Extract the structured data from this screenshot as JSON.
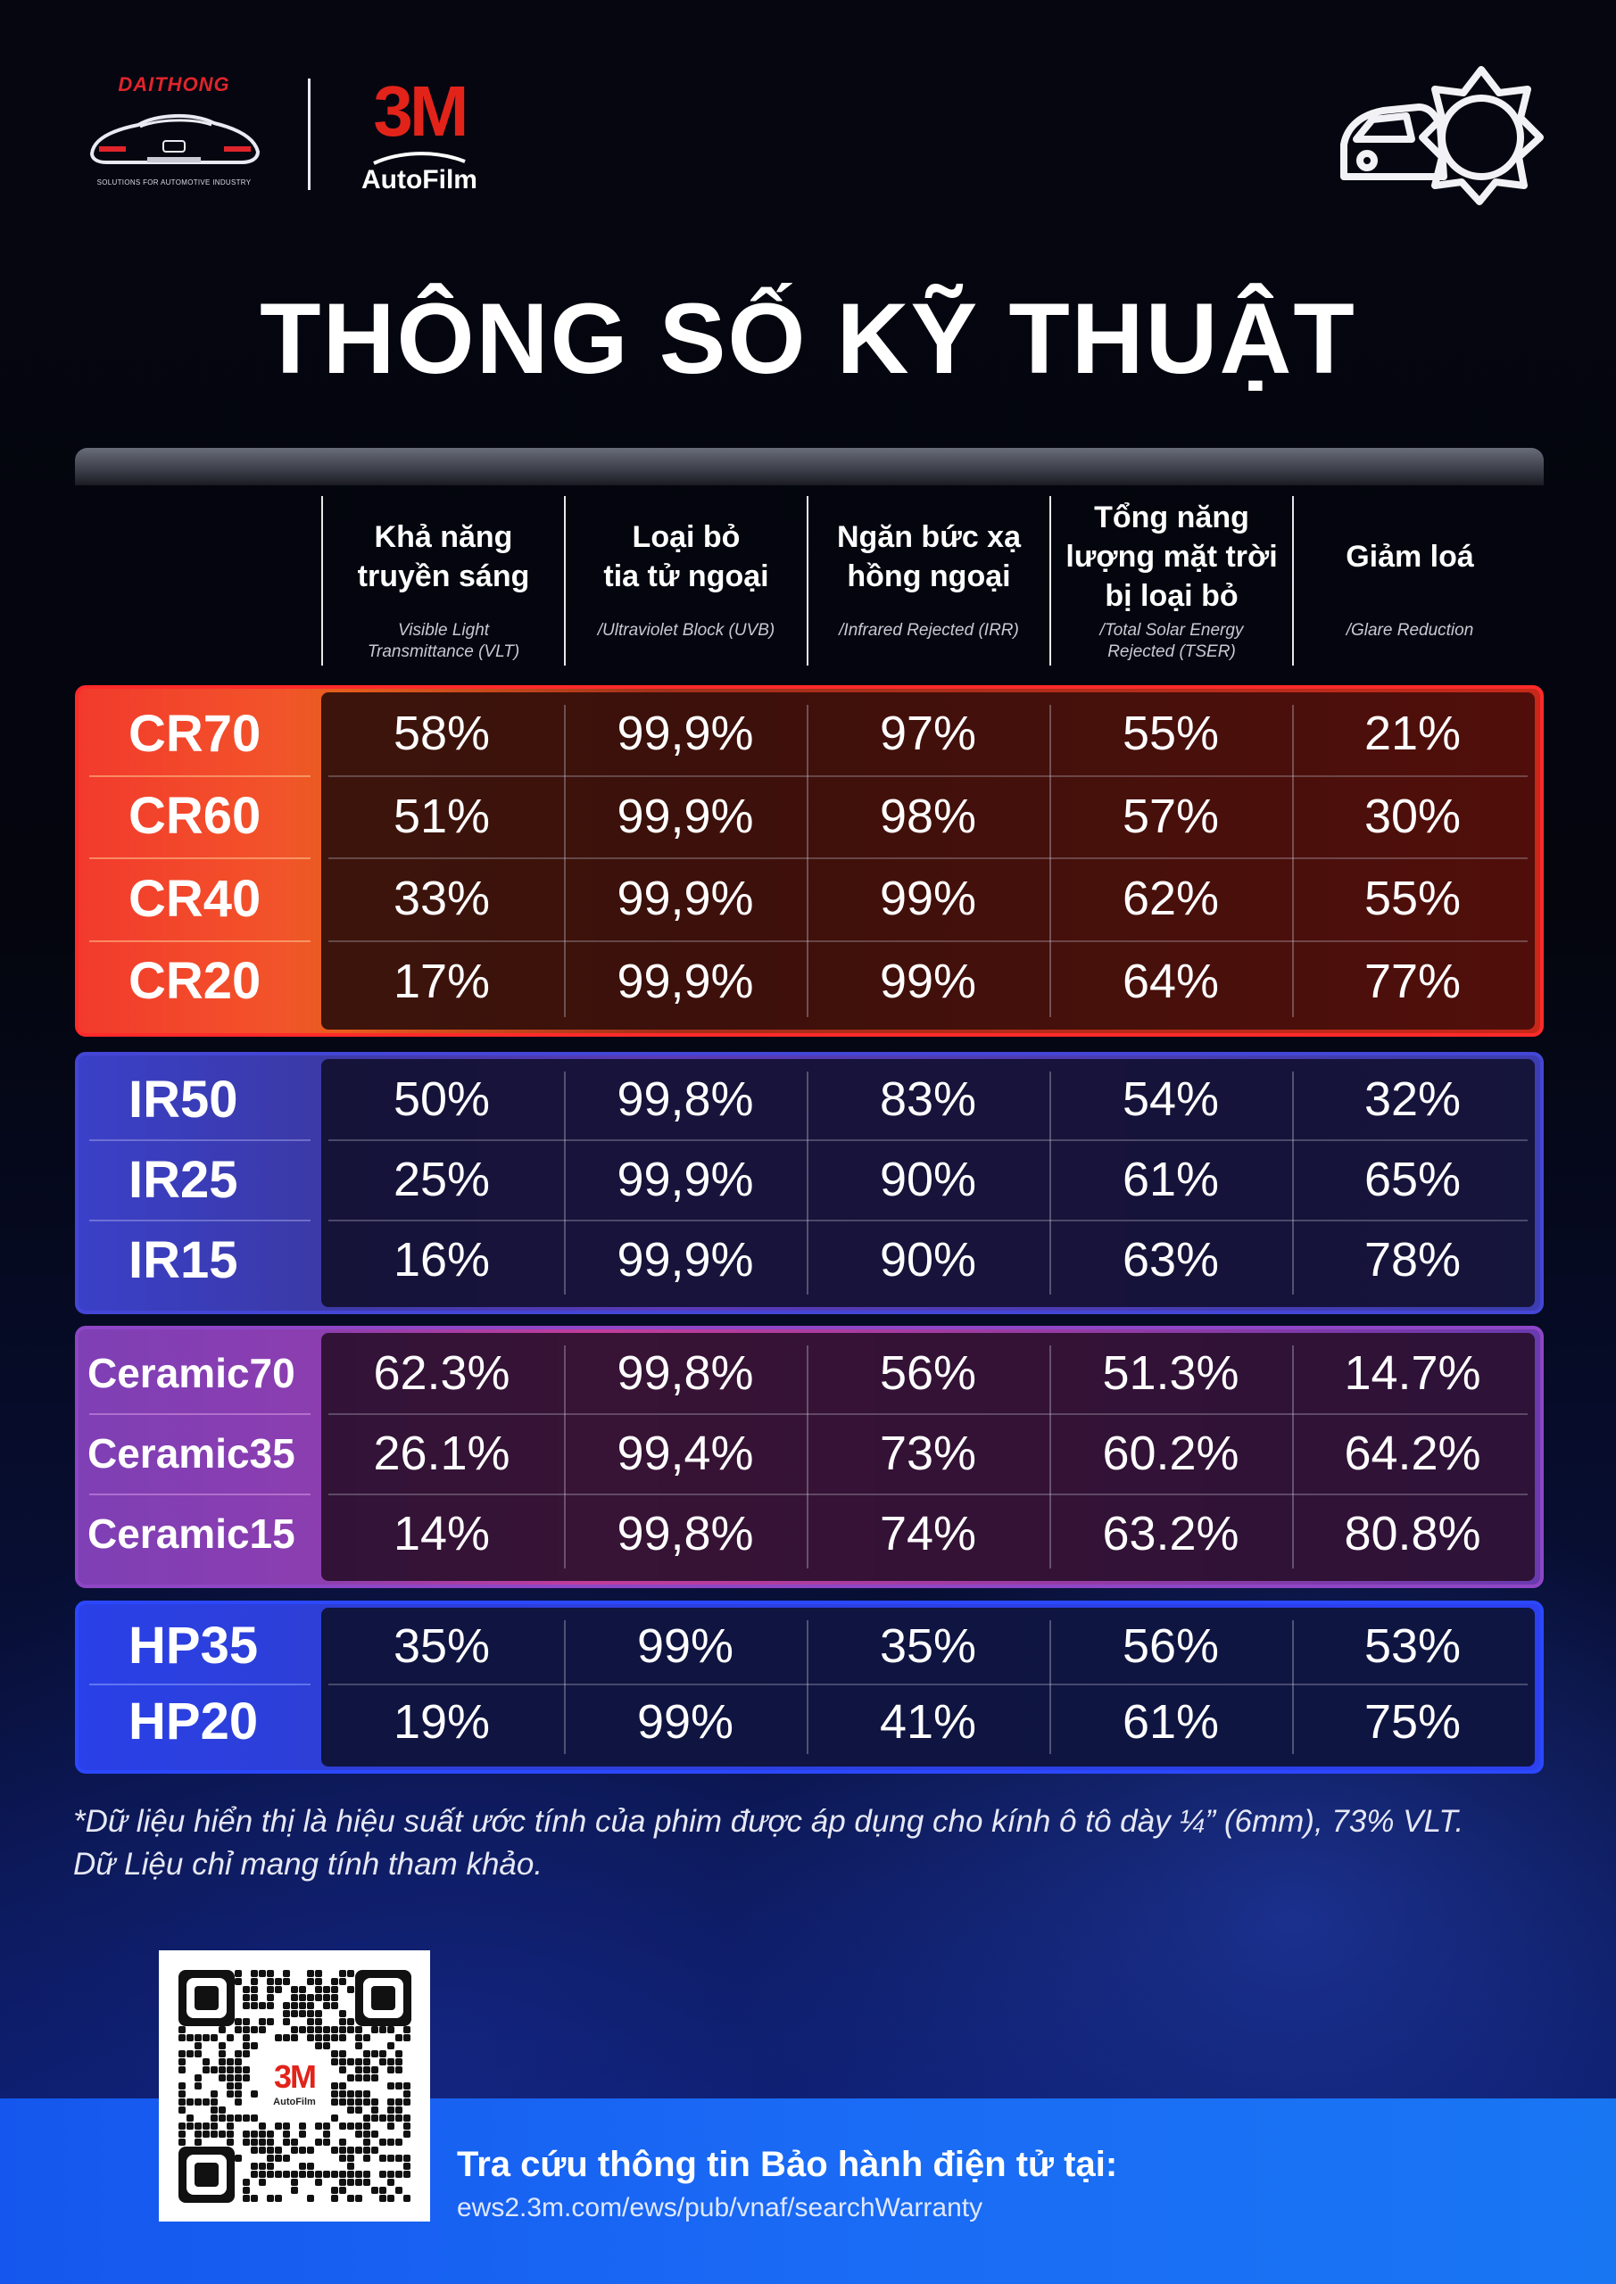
{
  "header": {
    "brand_left": "DAITHONG",
    "brand_left_tagline": "SOLUTIONS FOR AUTOMOTIVE INDUSTRY",
    "brand_right_mark": "3M",
    "brand_right_product": "AutoFilm"
  },
  "title": "THÔNG SỐ KỸ THUẬT",
  "columns": [
    {
      "vi": "Khả năng\ntruyền sáng",
      "en": "Visible Light\nTransmittance (VLT)"
    },
    {
      "vi": "Loại bỏ\ntia tử ngoại",
      "en": "/Ultraviolet Block (UVB)"
    },
    {
      "vi": "Ngăn bức xạ\nhồng ngoại",
      "en": "/Infrared Rejected (IRR)"
    },
    {
      "vi": "Tổng năng\nlượng mặt trời\nbị loại bỏ",
      "en": "/Total Solar Energy\nRejected (TSER)"
    },
    {
      "vi": "Giảm loá",
      "en": "/Glare Reduction"
    }
  ],
  "groups": [
    {
      "rows": [
        {
          "name": "CR70",
          "values": [
            "58%",
            "99,9%",
            "97%",
            "55%",
            "21%"
          ]
        },
        {
          "name": "CR60",
          "values": [
            "51%",
            "99,9%",
            "98%",
            "57%",
            "30%"
          ]
        },
        {
          "name": "CR40",
          "values": [
            "33%",
            "99,9%",
            "99%",
            "62%",
            "55%"
          ]
        },
        {
          "name": "CR20",
          "values": [
            "17%",
            "99,9%",
            "99%",
            "64%",
            "77%"
          ]
        }
      ]
    },
    {
      "rows": [
        {
          "name": "IR50",
          "values": [
            "50%",
            "99,8%",
            "83%",
            "54%",
            "32%"
          ]
        },
        {
          "name": "IR25",
          "values": [
            "25%",
            "99,9%",
            "90%",
            "61%",
            "65%"
          ]
        },
        {
          "name": "IR15",
          "values": [
            "16%",
            "99,9%",
            "90%",
            "63%",
            "78%"
          ]
        }
      ]
    },
    {
      "rows": [
        {
          "name": "Ceramic70",
          "values": [
            "62.3%",
            "99,8%",
            "56%",
            "51.3%",
            "14.7%"
          ]
        },
        {
          "name": "Ceramic35",
          "values": [
            "26.1%",
            "99,4%",
            "73%",
            "60.2%",
            "64.2%"
          ]
        },
        {
          "name": "Ceramic15",
          "values": [
            "14%",
            "99,8%",
            "74%",
            "63.2%",
            "80.8%"
          ]
        }
      ]
    },
    {
      "rows": [
        {
          "name": "HP35",
          "values": [
            "35%",
            "99%",
            "35%",
            "56%",
            "53%"
          ]
        },
        {
          "name": "HP20",
          "values": [
            "19%",
            "99%",
            "41%",
            "61%",
            "75%"
          ]
        }
      ]
    }
  ],
  "footnote": {
    "line1": "*Dữ liệu hiển thị là hiệu suất ước tính của phim được áp dụng cho kính ô tô dày ¼” (6mm), 73% VLT.",
    "line2": "Dữ Liệu chỉ mang tính tham khảo."
  },
  "qr": {
    "mark": "3M",
    "product": "AutoFilm"
  },
  "warranty": {
    "title": "Tra cứu thông tin Bảo hành điện tử tại:",
    "url": "ews2.3m.com/ews/pub/vnaf/searchWarranty"
  },
  "colors": {
    "cr_group": "#f23a2c",
    "ir_group": "#3a40c8",
    "ceramic_group": "#8b3eb0",
    "hp_group": "#2a40e8",
    "brand_red": "#e2231a",
    "bottom_band": "#1a6af5"
  },
  "icons": [
    "car-silhouette-logo-icon",
    "car-sun-icon",
    "qr-code-icon"
  ]
}
